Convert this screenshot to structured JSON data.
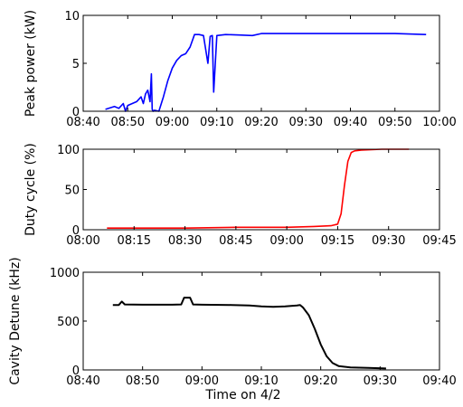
{
  "chart_data": [
    {
      "type": "line",
      "ylabel": "Peak power (kW)",
      "xlabel": "",
      "x_ticks": [
        "08:40",
        "08:50",
        "09:00",
        "09:10",
        "09:20",
        "09:30",
        "09:40",
        "09:50",
        "10:00"
      ],
      "y_ticks": [
        "0",
        "5",
        "10"
      ],
      "xlim": [
        "08:40",
        "10:00"
      ],
      "ylim": [
        0,
        10
      ],
      "grid": false,
      "series": [
        {
          "color": "#0000ff",
          "x": [
            "08:45",
            "08:47",
            "08:48",
            "08:49",
            "08:49.5",
            "08:50",
            "08:51",
            "08:52",
            "08:53",
            "08:53.5",
            "08:54",
            "08:54.5",
            "08:55",
            "08:55.3",
            "08:55.5",
            "08:55.7",
            "08:56",
            "08:57",
            "08:58",
            "08:59",
            "09:00",
            "09:01",
            "09:02",
            "09:03",
            "09:04",
            "09:05",
            "09:06",
            "09:07",
            "09:08",
            "09:08.5",
            "09:09",
            "09:09.3",
            "09:10",
            "09:12",
            "09:15",
            "09:18",
            "09:20",
            "09:22",
            "09:25",
            "09:30",
            "09:40",
            "09:50",
            "09:57"
          ],
          "values": [
            0.2,
            0.5,
            0.3,
            0.8,
            0.0,
            0.6,
            0.8,
            1.0,
            1.5,
            0.8,
            1.8,
            2.2,
            1.0,
            3.9,
            0.2,
            0.0,
            0.1,
            0.0,
            1.5,
            3.2,
            4.5,
            5.3,
            5.8,
            6.0,
            6.7,
            8.0,
            8.0,
            7.9,
            5.0,
            7.8,
            7.9,
            2.0,
            7.9,
            8.0,
            7.95,
            7.9,
            8.1,
            8.1,
            8.1,
            8.1,
            8.1,
            8.1,
            8.0
          ]
        }
      ]
    },
    {
      "type": "line",
      "ylabel": "Duty cycle (%)",
      "xlabel": "",
      "x_ticks": [
        "08:00",
        "08:15",
        "08:30",
        "08:45",
        "09:00",
        "09:15",
        "09:30",
        "09:45"
      ],
      "y_ticks": [
        "0",
        "50",
        "100"
      ],
      "xlim": [
        "08:00",
        "09:45"
      ],
      "ylim": [
        0,
        100
      ],
      "grid": false,
      "series": [
        {
          "color": "#ff0000",
          "x": [
            "08:07",
            "08:30",
            "08:45",
            "09:00",
            "09:08",
            "09:13",
            "09:15",
            "09:16",
            "09:17",
            "09:18",
            "09:19",
            "09:20",
            "09:22",
            "09:28",
            "09:36"
          ],
          "values": [
            2,
            2,
            3,
            3,
            4,
            5,
            7,
            20,
            55,
            85,
            96,
            98,
            99,
            100,
            100
          ]
        }
      ]
    },
    {
      "type": "line",
      "ylabel": "Cavity Detune (kHz)",
      "xlabel": "Time on 4/2",
      "x_ticks": [
        "08:40",
        "08:50",
        "09:00",
        "09:10",
        "09:20",
        "09:30",
        "09:40"
      ],
      "y_ticks": [
        "0",
        "500",
        "1000"
      ],
      "xlim": [
        "08:40",
        "09:40"
      ],
      "ylim": [
        0,
        1000
      ],
      "grid": false,
      "series": [
        {
          "color": "#000000",
          "x": [
            "08:45",
            "08:46",
            "08:46.5",
            "08:47",
            "08:50",
            "08:55",
            "08:56.5",
            "08:57",
            "08:58",
            "08:58.5",
            "09:00",
            "09:05",
            "09:08",
            "09:10",
            "09:12",
            "09:14",
            "09:15",
            "09:16",
            "09:16.5",
            "09:17",
            "09:18",
            "09:19",
            "09:20",
            "09:21",
            "09:22",
            "09:23",
            "09:25",
            "09:28",
            "09:31"
          ],
          "values": [
            665,
            665,
            700,
            670,
            668,
            668,
            670,
            740,
            740,
            670,
            668,
            665,
            660,
            650,
            645,
            650,
            655,
            660,
            665,
            640,
            560,
            420,
            260,
            140,
            70,
            40,
            25,
            20,
            15
          ]
        }
      ]
    }
  ]
}
